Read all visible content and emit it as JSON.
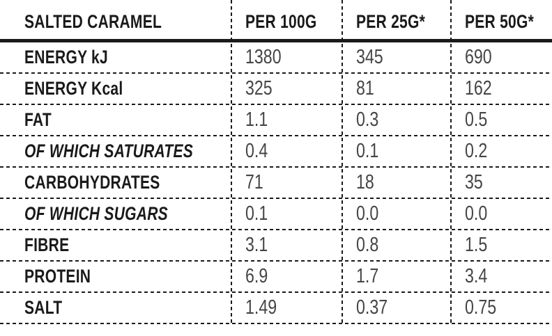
{
  "colors": {
    "background": "#ffffff",
    "label_text": "#1a1a1a",
    "value_text": "#454545",
    "line": "#1a1a1a"
  },
  "table": {
    "title": "SALTED CARAMEL",
    "columns": [
      "PER 100G",
      "PER 25G*",
      "PER 50G*"
    ],
    "rows": [
      {
        "label": "ENERGY kJ",
        "italic": false,
        "per_100g": "1380",
        "per_25g": "345",
        "per_50g": "690"
      },
      {
        "label": "ENERGY Kcal",
        "italic": false,
        "per_100g": "325",
        "per_25g": "81",
        "per_50g": "162"
      },
      {
        "label": "FAT",
        "italic": false,
        "per_100g": "1.1",
        "per_25g": "0.3",
        "per_50g": "0.5"
      },
      {
        "label": "OF WHICH SATURATES",
        "italic": true,
        "per_100g": "0.4",
        "per_25g": "0.1",
        "per_50g": "0.2"
      },
      {
        "label": "CARBOHYDRATES",
        "italic": false,
        "per_100g": "71",
        "per_25g": "18",
        "per_50g": "35"
      },
      {
        "label": "OF WHICH SUGARS",
        "italic": true,
        "per_100g": "0.1",
        "per_25g": "0.0",
        "per_50g": "0.0"
      },
      {
        "label": "FIBRE",
        "italic": false,
        "per_100g": "3.1",
        "per_25g": "0.8",
        "per_50g": "1.5"
      },
      {
        "label": "PROTEIN",
        "italic": false,
        "per_100g": "6.9",
        "per_25g": "1.7",
        "per_50g": "3.4"
      },
      {
        "label": "SALT",
        "italic": false,
        "per_100g": "1.49",
        "per_25g": "0.37",
        "per_50g": "0.75"
      }
    ]
  }
}
